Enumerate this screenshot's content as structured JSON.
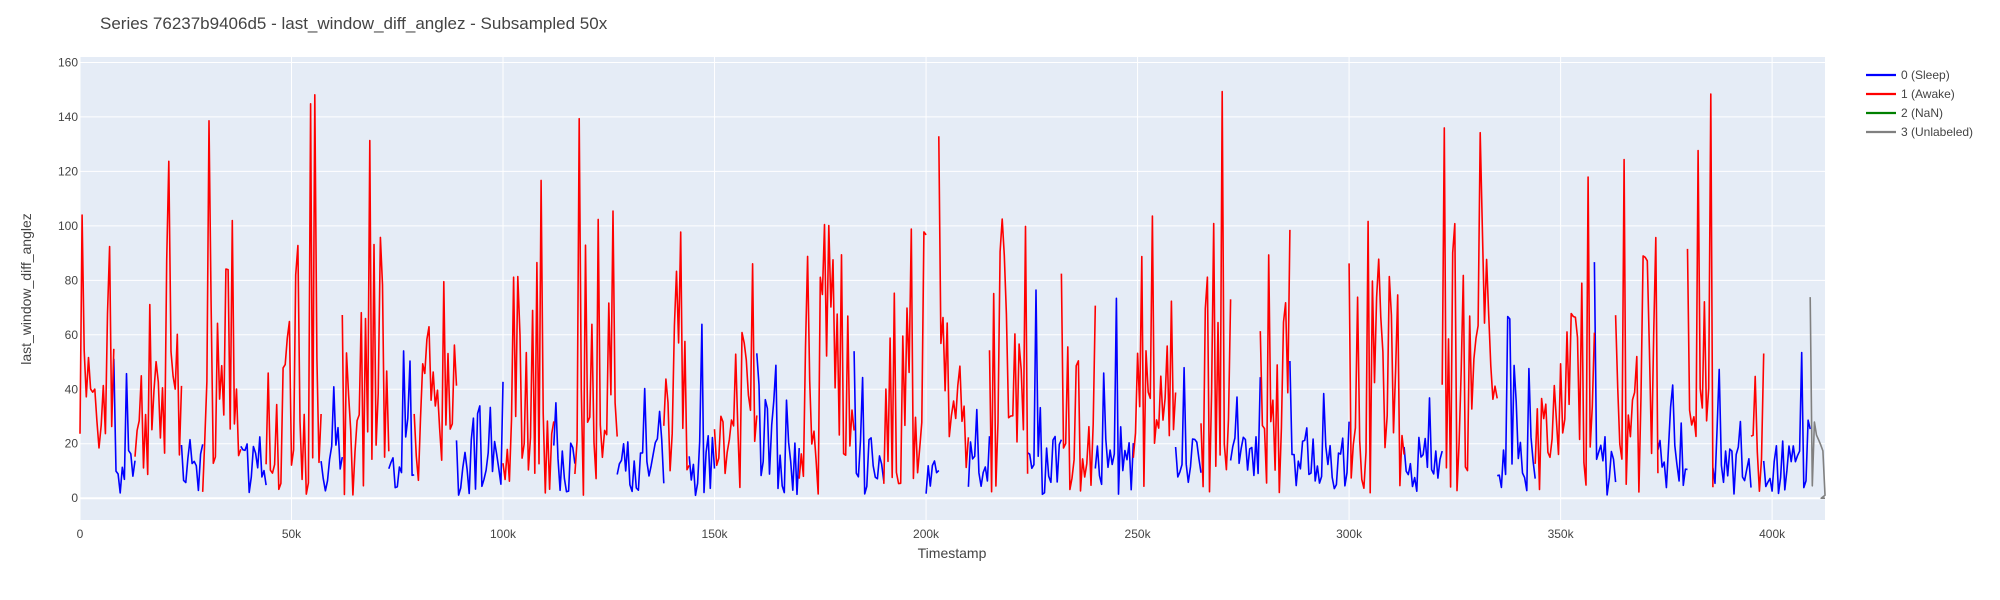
{
  "chart_data": {
    "type": "line",
    "title": "Series 76237b9406d5 - last_window_diff_anglez - Subsampled 50x",
    "xlabel": "Timestamp",
    "ylabel": "last_window_diff_anglez",
    "xlim": [
      0,
      412500
    ],
    "ylim": [
      -8,
      162
    ],
    "x_ticks": [
      0,
      50000,
      100000,
      150000,
      200000,
      250000,
      300000,
      350000,
      400000
    ],
    "x_tick_labels": [
      "0",
      "50k",
      "100k",
      "150k",
      "200k",
      "250k",
      "300k",
      "350k",
      "400k"
    ],
    "y_ticks": [
      0,
      20,
      40,
      60,
      80,
      100,
      120,
      140,
      160
    ],
    "y_tick_labels": [
      "0",
      "20",
      "40",
      "60",
      "80",
      "100",
      "120",
      "140",
      "160"
    ],
    "grid": true,
    "legend_position": "right",
    "background_color": "#e5ecf6",
    "series": [
      {
        "name": "0 (Sleep)",
        "color": "#0000ff",
        "segments": [
          [
            8000,
            13000
          ],
          [
            24000,
            29000
          ],
          [
            38000,
            44000
          ],
          [
            57000,
            62000
          ],
          [
            73000,
            79000
          ],
          [
            89000,
            100000
          ],
          [
            112000,
            117000
          ],
          [
            127000,
            138000
          ],
          [
            144000,
            150000
          ],
          [
            160000,
            170000
          ],
          [
            183000,
            190000
          ],
          [
            200000,
            203000
          ],
          [
            210000,
            215000
          ],
          [
            224000,
            232000
          ],
          [
            240000,
            249000
          ],
          [
            259000,
            265000
          ],
          [
            272000,
            279000
          ],
          [
            286000,
            300000
          ],
          [
            313000,
            322000
          ],
          [
            335000,
            344000
          ],
          [
            358000,
            363000
          ],
          [
            373000,
            380000
          ],
          [
            386000,
            395000
          ],
          [
            398000,
            409000
          ]
        ]
      },
      {
        "name": "1 (Awake)",
        "color": "#ff0000",
        "segments": [
          [
            0,
            8000
          ],
          [
            13000,
            24000
          ],
          [
            29000,
            38000
          ],
          [
            44000,
            57000
          ],
          [
            62000,
            73000
          ],
          [
            79000,
            89000
          ],
          [
            100000,
            112000
          ],
          [
            117000,
            127000
          ],
          [
            138000,
            144000
          ],
          [
            150000,
            160000
          ],
          [
            170000,
            183000
          ],
          [
            190000,
            200000
          ],
          [
            203000,
            210000
          ],
          [
            215000,
            224000
          ],
          [
            232000,
            240000
          ],
          [
            249000,
            259000
          ],
          [
            265000,
            272000
          ],
          [
            279000,
            286000
          ],
          [
            300000,
            313000
          ],
          [
            322000,
            335000
          ],
          [
            344000,
            358000
          ],
          [
            363000,
            373000
          ],
          [
            380000,
            386000
          ],
          [
            395000,
            398000
          ]
        ]
      },
      {
        "name": "2 (NaN)",
        "color": "#008000",
        "segments": []
      },
      {
        "name": "3 (Unlabeled)",
        "color": "#808080",
        "segments": [
          [
            409000,
            412500
          ]
        ]
      }
    ]
  }
}
